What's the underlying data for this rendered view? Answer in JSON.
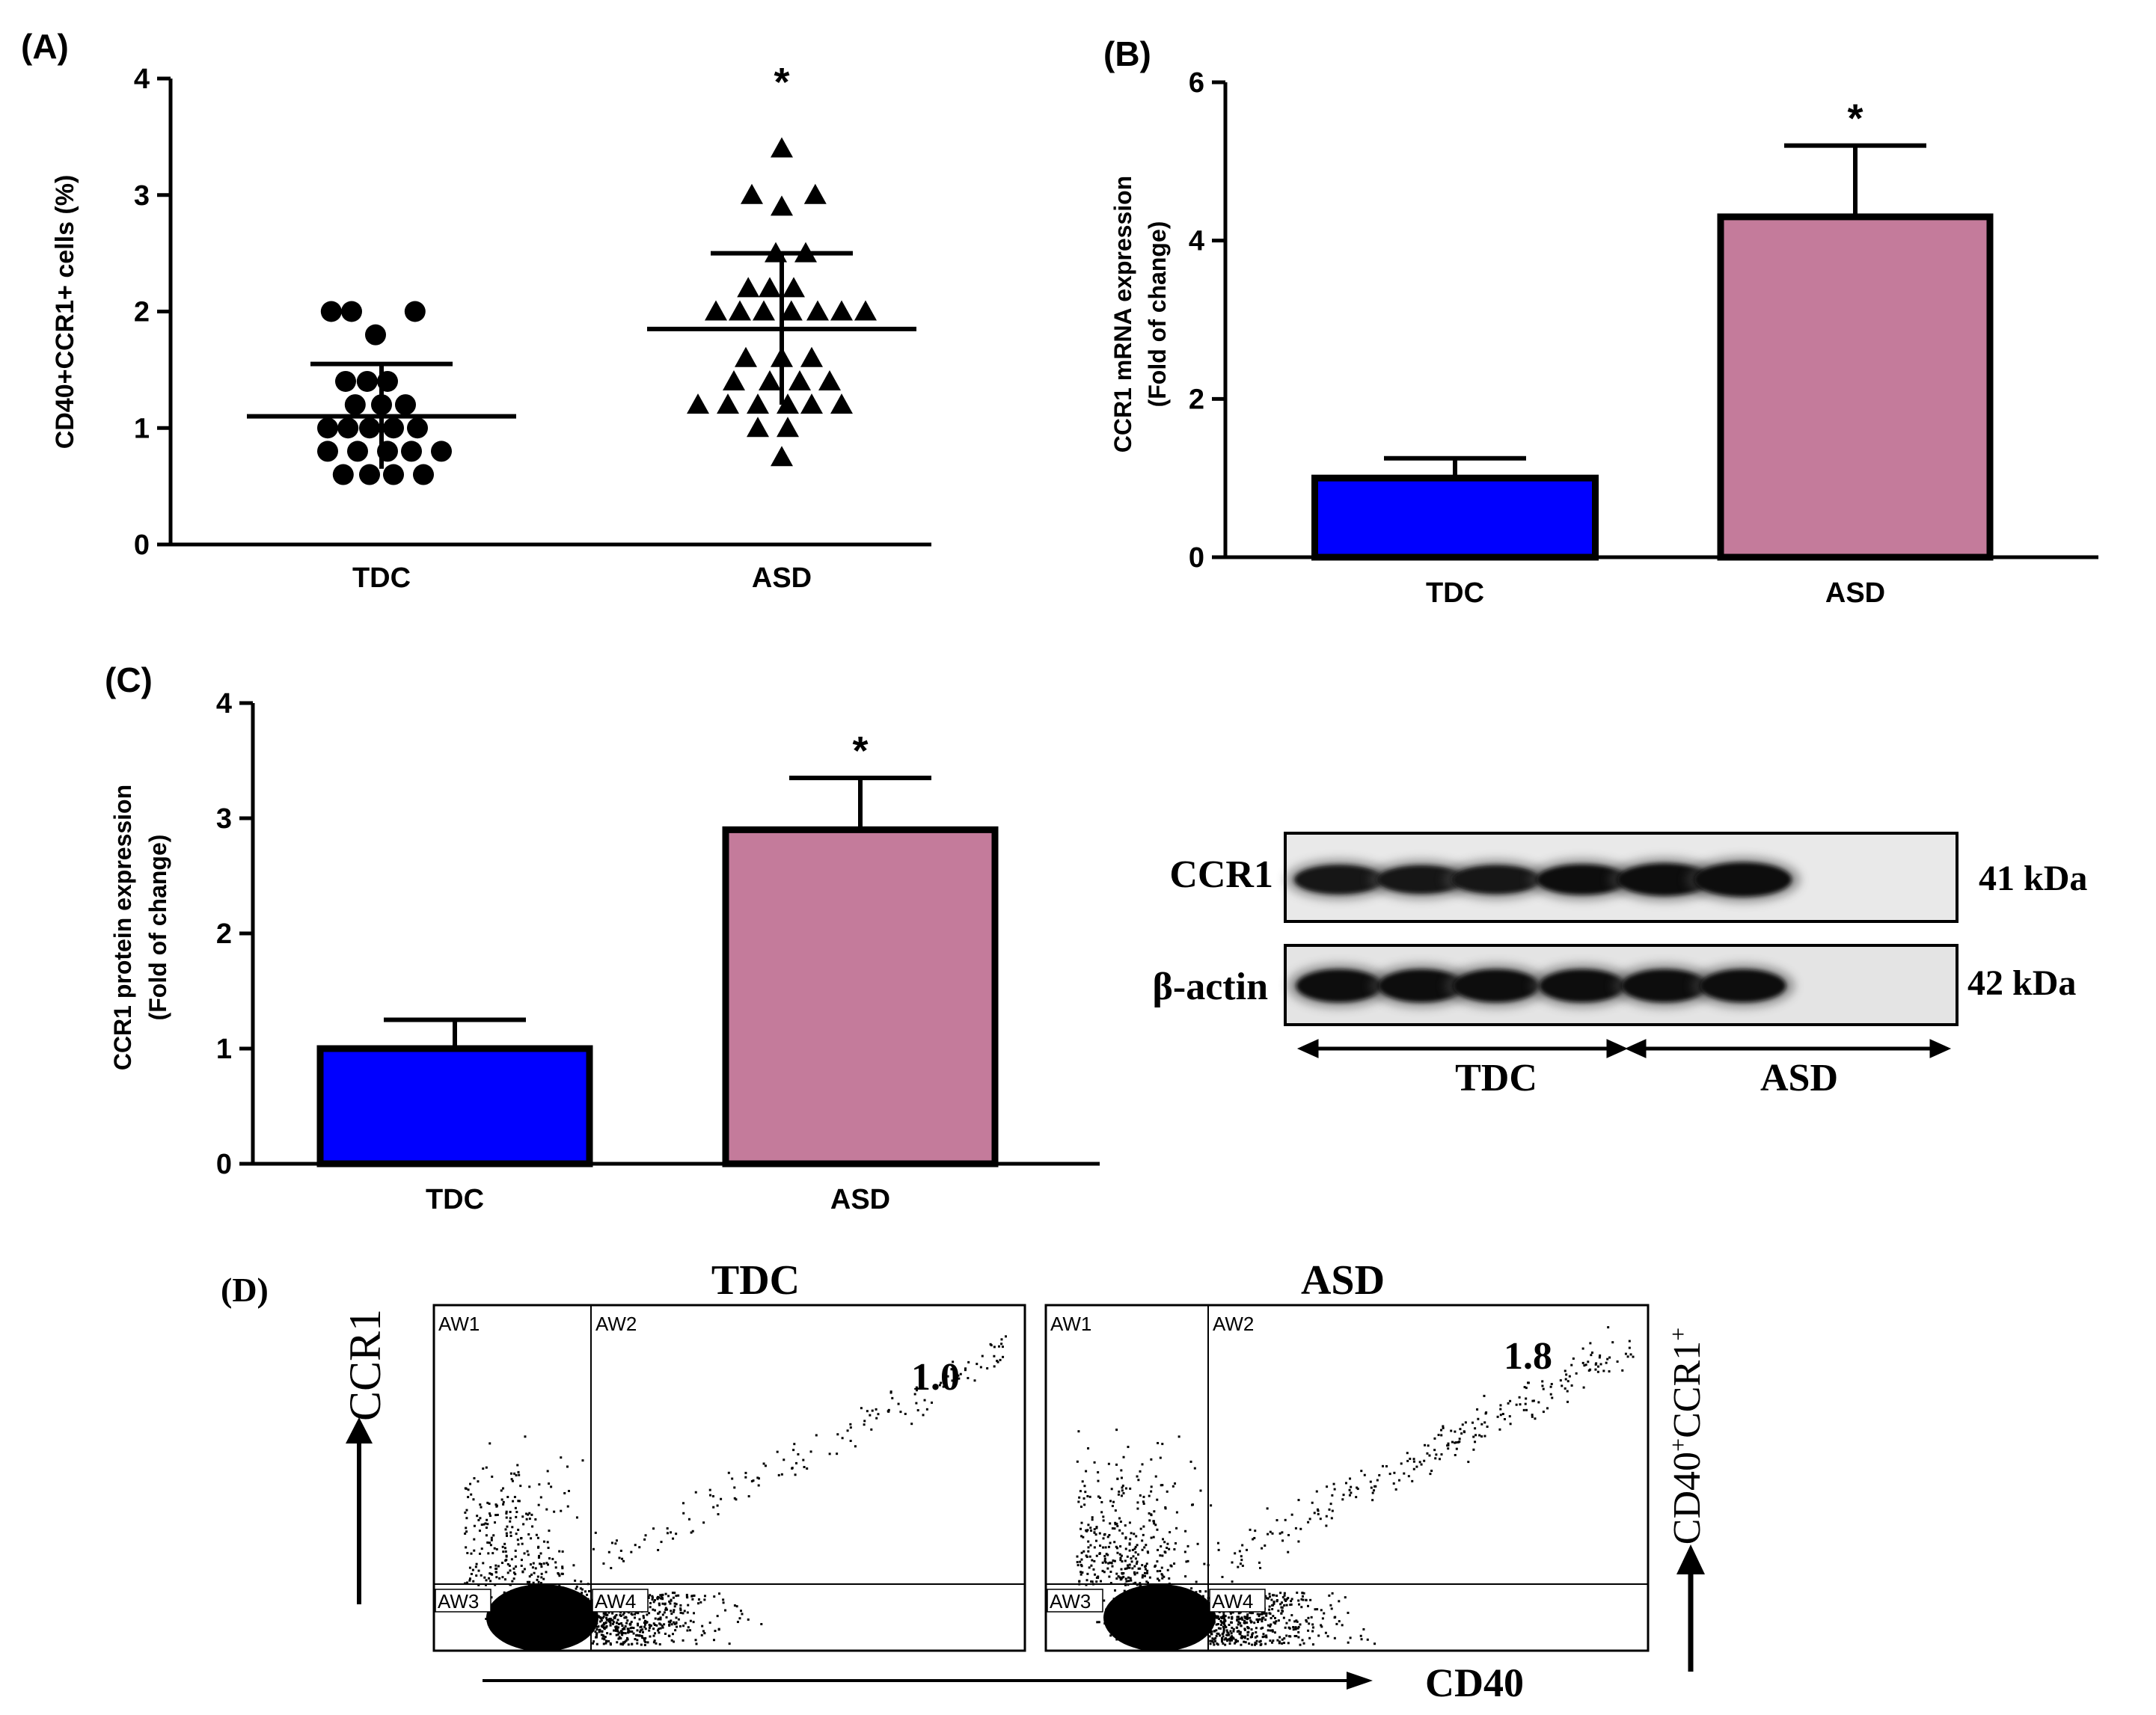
{
  "panels": {
    "A": {
      "label": "(A)",
      "chart_data": {
        "type": "scatter",
        "ylabel": "CD40+CCR1+ cells (%)",
        "ylim": [
          0,
          4
        ],
        "yticks": [
          "0",
          "1",
          "2",
          "3",
          "4"
        ],
        "categories": [
          "TDC",
          "ASD"
        ],
        "significance": "*",
        "series": [
          {
            "name": "TDC",
            "marker": "circle",
            "mean": 1.1,
            "sd_upper": 1.55,
            "sd_lower": 0.65,
            "points": [
              {
                "offset": -0.42,
                "y": 2.0
              },
              {
                "offset": -0.25,
                "y": 2.0
              },
              {
                "offset": 0.28,
                "y": 2.0
              },
              {
                "offset": -0.05,
                "y": 1.8
              },
              {
                "offset": -0.3,
                "y": 1.4
              },
              {
                "offset": -0.12,
                "y": 1.4
              },
              {
                "offset": 0.05,
                "y": 1.4
              },
              {
                "offset": -0.22,
                "y": 1.2
              },
              {
                "offset": 0.0,
                "y": 1.2
              },
              {
                "offset": 0.2,
                "y": 1.2
              },
              {
                "offset": -0.45,
                "y": 1.0
              },
              {
                "offset": -0.28,
                "y": 1.0
              },
              {
                "offset": -0.1,
                "y": 1.0
              },
              {
                "offset": 0.1,
                "y": 1.0
              },
              {
                "offset": 0.3,
                "y": 1.0
              },
              {
                "offset": -0.45,
                "y": 0.8
              },
              {
                "offset": -0.2,
                "y": 0.8
              },
              {
                "offset": 0.05,
                "y": 0.8
              },
              {
                "offset": 0.25,
                "y": 0.8
              },
              {
                "offset": 0.5,
                "y": 0.8
              },
              {
                "offset": -0.32,
                "y": 0.6
              },
              {
                "offset": -0.1,
                "y": 0.6
              },
              {
                "offset": 0.1,
                "y": 0.6
              },
              {
                "offset": 0.35,
                "y": 0.6
              }
            ]
          },
          {
            "name": "ASD",
            "marker": "triangle",
            "mean": 1.85,
            "sd_upper": 2.5,
            "sd_lower": 1.2,
            "points": [
              {
                "offset": 0.0,
                "y": 3.4
              },
              {
                "offset": -0.25,
                "y": 3.0
              },
              {
                "offset": 0.28,
                "y": 3.0
              },
              {
                "offset": 0.0,
                "y": 2.9
              },
              {
                "offset": -0.05,
                "y": 2.5
              },
              {
                "offset": 0.2,
                "y": 2.5
              },
              {
                "offset": -0.28,
                "y": 2.2
              },
              {
                "offset": -0.1,
                "y": 2.2
              },
              {
                "offset": 0.1,
                "y": 2.2
              },
              {
                "offset": -0.55,
                "y": 2.0
              },
              {
                "offset": -0.35,
                "y": 2.0
              },
              {
                "offset": -0.15,
                "y": 2.0
              },
              {
                "offset": 0.08,
                "y": 2.0
              },
              {
                "offset": 0.3,
                "y": 2.0
              },
              {
                "offset": 0.5,
                "y": 2.0
              },
              {
                "offset": 0.7,
                "y": 2.0
              },
              {
                "offset": -0.3,
                "y": 1.6
              },
              {
                "offset": 0.0,
                "y": 1.6
              },
              {
                "offset": 0.25,
                "y": 1.6
              },
              {
                "offset": -0.4,
                "y": 1.4
              },
              {
                "offset": -0.1,
                "y": 1.4
              },
              {
                "offset": 0.15,
                "y": 1.4
              },
              {
                "offset": 0.4,
                "y": 1.4
              },
              {
                "offset": -0.7,
                "y": 1.2
              },
              {
                "offset": -0.45,
                "y": 1.2
              },
              {
                "offset": -0.2,
                "y": 1.2
              },
              {
                "offset": 0.05,
                "y": 1.2
              },
              {
                "offset": 0.25,
                "y": 1.2
              },
              {
                "offset": 0.5,
                "y": 1.2
              },
              {
                "offset": -0.2,
                "y": 1.0
              },
              {
                "offset": 0.05,
                "y": 1.0
              },
              {
                "offset": 0.0,
                "y": 0.75
              }
            ]
          }
        ]
      }
    },
    "B": {
      "label": "(B)",
      "chart_data": {
        "type": "bar",
        "ylabel_line1": "CCR1 mRNA expression",
        "ylabel_line2": "(Fold of change)",
        "ylim": [
          0,
          6
        ],
        "yticks": [
          "0",
          "2",
          "4",
          "6"
        ],
        "categories": [
          "TDC",
          "ASD"
        ],
        "values": [
          1.0,
          4.3
        ],
        "errors": [
          0.25,
          0.9
        ],
        "colors": [
          "#0000ff",
          "#c47b9b"
        ],
        "significance": [
          "",
          "*"
        ]
      }
    },
    "C": {
      "label": "(C)",
      "chart_data": {
        "type": "bar",
        "ylabel_line1": "CCR1 protein expression",
        "ylabel_line2": "(Fold of change)",
        "ylim": [
          0,
          4
        ],
        "yticks": [
          "0",
          "1",
          "2",
          "3",
          "4"
        ],
        "categories": [
          "TDC",
          "ASD"
        ],
        "values": [
          1.0,
          2.9
        ],
        "errors": [
          0.25,
          0.45
        ],
        "colors": [
          "#0000ff",
          "#c47b9b"
        ],
        "significance": [
          "",
          "*"
        ]
      }
    },
    "blot": {
      "rows": [
        {
          "name": "CCR1",
          "kda": "41 kDa",
          "band_intensity": [
            0.75,
            0.7,
            0.72,
            0.8,
            0.9,
            1.0
          ]
        },
        {
          "name": "β-actin",
          "kda": "42 kDa",
          "band_intensity": [
            0.95,
            0.95,
            0.95,
            0.95,
            0.95,
            0.95
          ]
        }
      ],
      "groups": [
        "TDC",
        "ASD"
      ]
    },
    "D": {
      "label": "(D)",
      "y_axis_label": "CCR1",
      "x_axis_label": "CD40",
      "right_label": "CD40+CCR1+",
      "right_label_main": "CD40",
      "right_label_sup1": "+",
      "right_label_mid": "CCR1",
      "right_label_sup2": "+",
      "plots": [
        {
          "title": "TDC",
          "value": "1.0",
          "quadrants": [
            "AW1",
            "AW2",
            "AW3",
            "AW4"
          ],
          "upper_right_density": 0.45
        },
        {
          "title": "ASD",
          "value": "1.8",
          "quadrants": [
            "AW1",
            "AW2",
            "AW3",
            "AW4"
          ],
          "upper_right_density": 1.0
        }
      ]
    }
  }
}
